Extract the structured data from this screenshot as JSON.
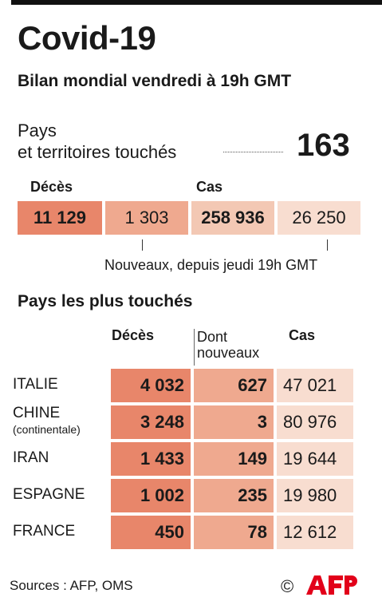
{
  "title": "Covid-19",
  "subtitle": "Bilan mondial vendredi à 19h GMT",
  "countries_affected": {
    "label_line1": "Pays",
    "label_line2": "et territoires touchés",
    "value": "163"
  },
  "summary": {
    "deaths_header": "Décès",
    "cases_header": "Cas",
    "deaths_total": "11 129",
    "deaths_new": "1 303",
    "cases_total": "258 936",
    "cases_new": "26 250",
    "note": "Nouveaux, depuis jeudi 19h GMT"
  },
  "section_title": "Pays les plus touchés",
  "table": {
    "col_deaths": "Décès",
    "col_new_line1": "Dont",
    "col_new_line2": "nouveaux",
    "col_cases": "Cas",
    "rows": [
      {
        "country": "ITALIE",
        "sub": "",
        "deaths": "4 032",
        "new": "627",
        "cases": "47 021"
      },
      {
        "country": "CHINE",
        "sub": "(continentale)",
        "deaths": "3 248",
        "new": "3",
        "cases": "80 976"
      },
      {
        "country": "IRAN",
        "sub": "",
        "deaths": "1 433",
        "new": "149",
        "cases": "19 644"
      },
      {
        "country": "ESPAGNE",
        "sub": "",
        "deaths": "1 002",
        "new": "235",
        "cases": "19 980"
      },
      {
        "country": "FRANCE",
        "sub": "",
        "deaths": "450",
        "new": "78",
        "cases": "12 612"
      }
    ]
  },
  "footer": {
    "sources": "Sources : AFP, OMS",
    "copyright": "©",
    "logo": "AFP"
  },
  "colors": {
    "deaths_dark": "#e8866a",
    "deaths_mid": "#efa98f",
    "cases_mid": "#f3c8b4",
    "cases_light": "#f8ddd0"
  },
  "chart_data": {
    "type": "table",
    "columns": [
      "Décès",
      "Dont nouveaux",
      "Cas"
    ],
    "categories": [
      "ITALIE",
      "CHINE (continentale)",
      "IRAN",
      "ESPAGNE",
      "FRANCE"
    ],
    "series": [
      {
        "name": "Décès",
        "values": [
          4032,
          3248,
          1433,
          1002,
          450
        ]
      },
      {
        "name": "Dont nouveaux",
        "values": [
          627,
          3,
          149,
          235,
          78
        ]
      },
      {
        "name": "Cas",
        "values": [
          47021,
          80976,
          19644,
          19980,
          12612
        ]
      }
    ],
    "world": {
      "countries": 163,
      "deaths": 11129,
      "new_deaths": 1303,
      "cases": 258936,
      "new_cases": 26250
    }
  }
}
